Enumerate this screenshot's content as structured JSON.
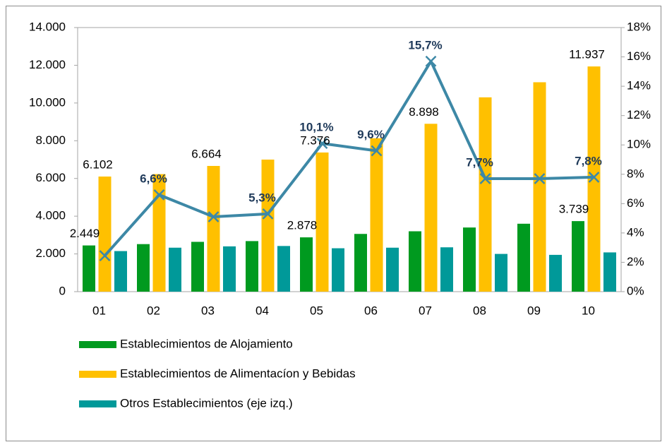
{
  "chart_data": {
    "type": "bar",
    "categories": [
      "01",
      "02",
      "03",
      "04",
      "05",
      "06",
      "07",
      "08",
      "09",
      "10"
    ],
    "series": [
      {
        "name": "Establecimientos de Alojamiento",
        "color": "#009a1f",
        "values": [
          2449,
          2520,
          2640,
          2680,
          2878,
          3060,
          3200,
          3400,
          3600,
          3739
        ],
        "value_labels": [
          "2.449",
          null,
          null,
          null,
          "2.878",
          null,
          null,
          null,
          null,
          "3.739"
        ]
      },
      {
        "name": "Establecimientos de Alimentacíon y Bebidas",
        "color": "#ffc000",
        "values": [
          6102,
          6230,
          6664,
          7000,
          7376,
          8130,
          8898,
          10300,
          11100,
          11937
        ],
        "value_labels": [
          "6.102",
          null,
          "6.664",
          null,
          "7.376",
          null,
          "8.898",
          null,
          null,
          "11.937"
        ]
      },
      {
        "name": "Otros Establecimientos (eje izq.)",
        "color": "#009999",
        "values": [
          2150,
          2330,
          2400,
          2420,
          2300,
          2330,
          2350,
          2000,
          1950,
          2080
        ]
      },
      {
        "type": "line",
        "axis": "y2",
        "color": "#3d88a6",
        "values": [
          2.45,
          6.6,
          5.1,
          5.3,
          10.1,
          9.6,
          15.7,
          7.7,
          7.7,
          7.8
        ],
        "value_labels": [
          null,
          "6,6%",
          null,
          "5,3%",
          "10,1%",
          "9,6%",
          "15,7%",
          "7,7%",
          null,
          "7,8%"
        ]
      }
    ],
    "ylim": [
      0,
      14000
    ],
    "yticks": [
      0,
      {
        "value": 2000,
        "label": "2.000"
      },
      {
        "value": 4000,
        "label": "4.000"
      },
      {
        "value": 6000,
        "label": "6.000"
      },
      {
        "value": 8000,
        "label": "8.000"
      },
      {
        "value": 10000,
        "label": "10.000"
      },
      {
        "value": 12000,
        "label": "12.000"
      },
      {
        "value": 14000,
        "label": "14.000"
      }
    ],
    "y2lim": [
      0,
      18
    ],
    "y2ticks": [
      {
        "value": 0,
        "label": "0%"
      },
      {
        "value": 2,
        "label": "2%"
      },
      {
        "value": 4,
        "label": "4%"
      },
      {
        "value": 6,
        "label": "6%"
      },
      {
        "value": 8,
        "label": "8%"
      },
      {
        "value": 10,
        "label": "10%"
      },
      {
        "value": 12,
        "label": "12%"
      },
      {
        "value": 14,
        "label": "14%"
      },
      {
        "value": 16,
        "label": "16%"
      },
      {
        "value": 18,
        "label": "18%"
      }
    ],
    "grid": false
  }
}
